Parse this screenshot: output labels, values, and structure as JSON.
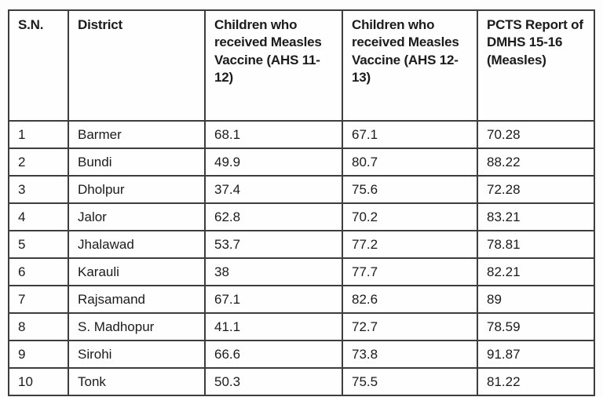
{
  "table": {
    "columns": [
      "S.N.",
      "District",
      "Children who received Measles Vaccine (AHS 11-12)",
      "Children who received Measles Vaccine (AHS 12-13)",
      "PCTS Report of DMHS 15-16 (Measles)"
    ],
    "rows": [
      [
        "1",
        "Barmer",
        "68.1",
        "67.1",
        "70.28"
      ],
      [
        "2",
        "Bundi",
        "49.9",
        "80.7",
        "88.22"
      ],
      [
        "3",
        "Dholpur",
        "37.4",
        "75.6",
        "72.28"
      ],
      [
        "4",
        "Jalor",
        "62.8",
        "70.2",
        "83.21"
      ],
      [
        "5",
        "Jhalawad",
        "53.7",
        "77.2",
        "78.81"
      ],
      [
        "6",
        "Karauli",
        "38",
        "77.7",
        "82.21"
      ],
      [
        "7",
        "Rajsamand",
        "67.1",
        "82.6",
        "89"
      ],
      [
        "8",
        "S. Madhopur",
        "41.1",
        "72.7",
        "78.59"
      ],
      [
        "9",
        "Sirohi",
        "66.6",
        "73.8",
        "91.87"
      ],
      [
        "10",
        "Tonk",
        "50.3",
        "75.5",
        "81.22"
      ]
    ]
  },
  "colors": {
    "border": "#3d3d3d",
    "text": "#1b1b1b",
    "background": "#fdfdfd"
  }
}
